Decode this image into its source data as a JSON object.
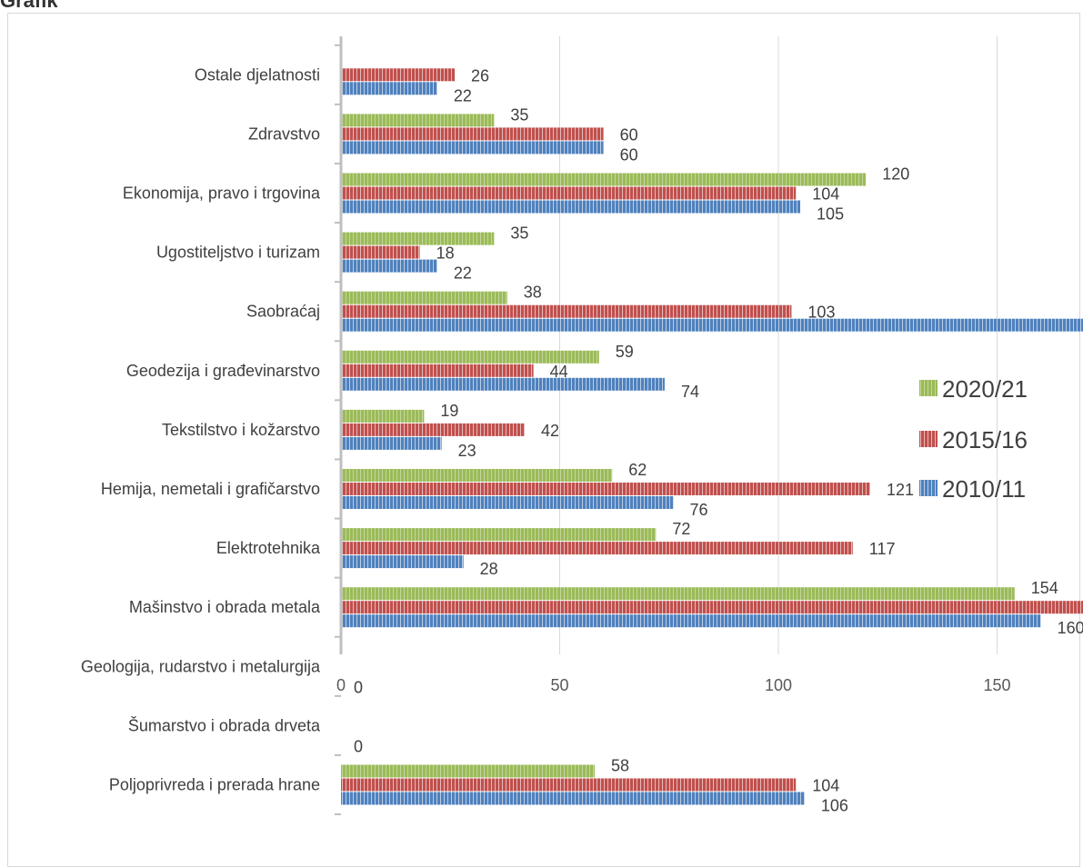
{
  "page": {
    "title_fragment": "Grafik"
  },
  "chart_data": {
    "type": "bar",
    "orientation": "horizontal",
    "title": "",
    "xlabel": "",
    "ylabel": "",
    "xlim": [
      0,
      250
    ],
    "xticks": [
      0,
      50,
      100,
      150,
      200,
      250
    ],
    "grid": "vertical",
    "legend_position": "right",
    "categories": [
      "Ostale djelatnosti",
      "Zdravstvo",
      "Ekonomija, pravo i trgovina",
      "Ugostiteljstvo i turizam",
      "Saobraćaj",
      "Geodezija i građevinarstvo",
      "Tekstilstvo i kožarstvo",
      "Hemija, nemetali i grafičarstvo",
      "Elektrotehnika",
      "Mašinstvo i obrada metala",
      "Geologija, rudarstvo i metalurgija",
      "Šumarstvo i obrada drveta",
      "Poljoprivreda i prerada hrane"
    ],
    "series": [
      {
        "name": "2020/21",
        "color": "#9bbb59",
        "values": [
          null,
          35,
          120,
          35,
          38,
          59,
          19,
          62,
          72,
          154,
          null,
          null,
          58
        ]
      },
      {
        "name": "2015/16",
        "color": "#c0504d",
        "values": [
          26,
          60,
          104,
          18,
          103,
          44,
          42,
          121,
          117,
          194,
          null,
          null,
          104
        ]
      },
      {
        "name": "2010/11",
        "color": "#4f81bd",
        "values": [
          22,
          60,
          105,
          22,
          171,
          74,
          23,
          76,
          28,
          160,
          0,
          0,
          106
        ]
      }
    ]
  }
}
